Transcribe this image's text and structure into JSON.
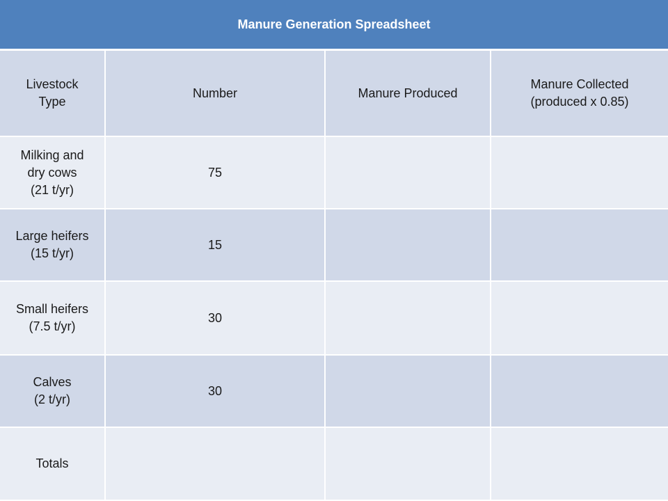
{
  "title": "Manure Generation Spreadsheet",
  "headers": {
    "livestock_type": [
      "Livestock",
      "Type"
    ],
    "number": "Number",
    "manure_produced": "Manure Produced",
    "manure_collected": [
      "Manure Collected",
      "(produced x 0.85)"
    ]
  },
  "rows": [
    {
      "label": [
        "Milking and",
        "dry cows",
        "(21 t/yr)"
      ],
      "number": "75",
      "produced": "",
      "collected": ""
    },
    {
      "label": [
        "Large heifers",
        "(15 t/yr)"
      ],
      "number": "15",
      "produced": "",
      "collected": ""
    },
    {
      "label": [
        "Small heifers",
        "(7.5 t/yr)"
      ],
      "number": "30",
      "produced": "",
      "collected": ""
    },
    {
      "label": [
        "Calves",
        "(2 t/yr)"
      ],
      "number": "30",
      "produced": "",
      "collected": ""
    }
  ],
  "totals": {
    "label": "Totals",
    "number": "",
    "produced": "",
    "collected": ""
  }
}
